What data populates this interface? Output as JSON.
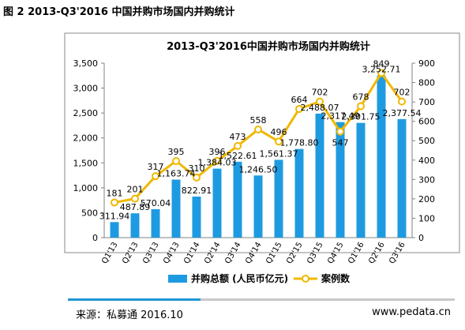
{
  "figure": {
    "caption": "图 2 2013-Q3'2016 中国并购市场国内并购统计",
    "source": "来源：私募通 2016.10",
    "site": "www.pedata.cn"
  },
  "chart_data": {
    "type": "bar",
    "title": "2013-Q3'2016中国并购市场国内并购统计",
    "categories": [
      "Q1'13",
      "Q2'13",
      "Q3'13",
      "Q4'13",
      "Q1'14",
      "Q2'14",
      "Q3'14",
      "Q4'14",
      "Q1'15",
      "Q2'15",
      "Q3'15",
      "Q4'15",
      "Q1'16",
      "Q2'16",
      "Q3'16"
    ],
    "series": [
      {
        "name": "并购总额 (人民币亿元)",
        "type": "bar",
        "axis": "left",
        "color": "#1e9be0",
        "values": [
          311.94,
          487.89,
          570.04,
          1163.74,
          822.91,
          1384.03,
          1522.61,
          1246.5,
          1561.37,
          1778.8,
          2488.07,
          2317.49,
          2301.75,
          3252.71,
          2377.54
        ],
        "labels": [
          "311.94",
          "487.89",
          "570.04",
          "1,163.74",
          "822.91",
          "1,384.03",
          "1,522.61",
          "1,246.50",
          "1,561.37",
          "1,778.80",
          "2,488.07",
          "2,317.49",
          "2,301.75",
          "3,252.71",
          "2,377.54"
        ]
      },
      {
        "name": "案例数",
        "type": "line",
        "axis": "right",
        "color": "#f0b800",
        "values": [
          181,
          201,
          317,
          395,
          310,
          396,
          473,
          558,
          496,
          664,
          702,
          547,
          678,
          849,
          702
        ]
      }
    ],
    "y_left": {
      "lim": [
        0,
        3500
      ],
      "ticks": [
        0,
        500,
        1000,
        1500,
        2000,
        2500,
        3000,
        3500
      ],
      "tick_labels": [
        "0",
        "500",
        "1,000",
        "1,500",
        "2,000",
        "2,500",
        "3,000",
        "3,500"
      ]
    },
    "y_right": {
      "lim": [
        0,
        900
      ],
      "ticks": [
        0,
        100,
        200,
        300,
        400,
        500,
        600,
        700,
        800,
        900
      ],
      "tick_labels": [
        "0",
        "100",
        "200",
        "300",
        "400",
        "500",
        "600",
        "700",
        "800",
        "900"
      ]
    },
    "grid": false,
    "legend": "bottom"
  }
}
